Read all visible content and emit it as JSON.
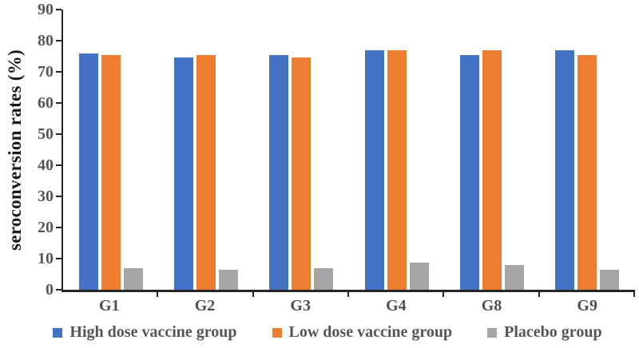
{
  "chart_data": {
    "type": "bar",
    "title": "",
    "xlabel": "",
    "ylabel": "seroconversion rates (%)",
    "ylim": [
      0,
      90
    ],
    "yticks": [
      0,
      10,
      20,
      30,
      40,
      50,
      60,
      70,
      80,
      90
    ],
    "grid": false,
    "legend_position": "bottom",
    "categories": [
      "G1",
      "G2",
      "G3",
      "G4",
      "G8",
      "G9"
    ],
    "series": [
      {
        "name": "High dose vaccine group",
        "color": "#4472C4",
        "values": [
          76.0,
          74.7,
          75.3,
          76.9,
          75.3,
          76.9
        ]
      },
      {
        "name": "Low dose vaccine group",
        "color": "#ED7D31",
        "values": [
          75.3,
          75.3,
          74.7,
          77.0,
          76.9,
          75.3
        ]
      },
      {
        "name": "Placebo group",
        "color": "#A6A6A6",
        "values": [
          7.0,
          6.3,
          7.0,
          8.7,
          8.0,
          6.4
        ]
      }
    ],
    "axis_color": "#262626",
    "tick_label_color": "#555555"
  }
}
